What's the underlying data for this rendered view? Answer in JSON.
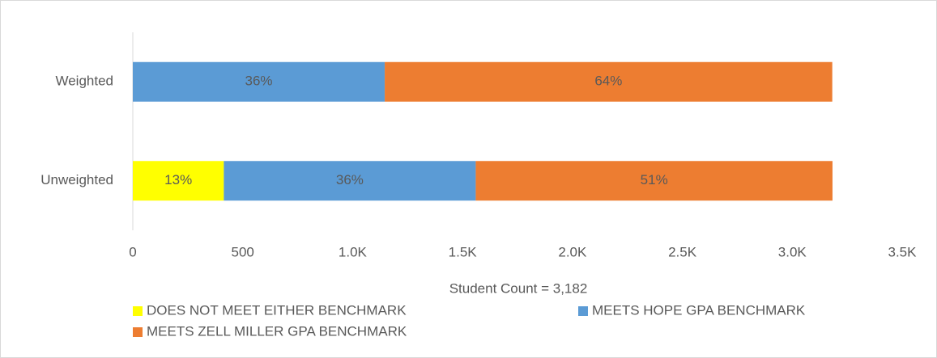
{
  "chart_data": {
    "type": "stacked_barh",
    "categories": [
      "Weighted",
      "Unweighted"
    ],
    "series": [
      {
        "name": "DOES NOT MEET EITHER BENCHMARK",
        "color": "#ffff00",
        "values": [
          null,
          414
        ],
        "value_labels": [
          null,
          "13%"
        ]
      },
      {
        "name": "MEETS HOPE GPA BENCHMARK",
        "color": "#5b9bd5",
        "values": [
          1146,
          1146
        ],
        "value_labels": [
          "36%",
          "36%"
        ]
      },
      {
        "name": "MEETS ZELL MILLER GPA BENCHMARK",
        "color": "#ed7d31",
        "values": [
          2036,
          1623
        ],
        "value_labels": [
          "64%",
          "51%"
        ]
      }
    ],
    "xlabel": "Student Count = 3,182",
    "xlim": [
      0,
      3500
    ],
    "xticks": [
      0,
      500,
      {
        "value": 1000,
        "label": "1.0K"
      },
      {
        "value": 1500,
        "label": "1.5K"
      },
      {
        "value": 2000,
        "label": "2.0K"
      },
      {
        "value": 2500,
        "label": "2.5K"
      },
      {
        "value": 3000,
        "label": "3.0K"
      },
      {
        "value": 3500,
        "label": "3.5K"
      }
    ],
    "grid": false,
    "legend": "bottom"
  }
}
